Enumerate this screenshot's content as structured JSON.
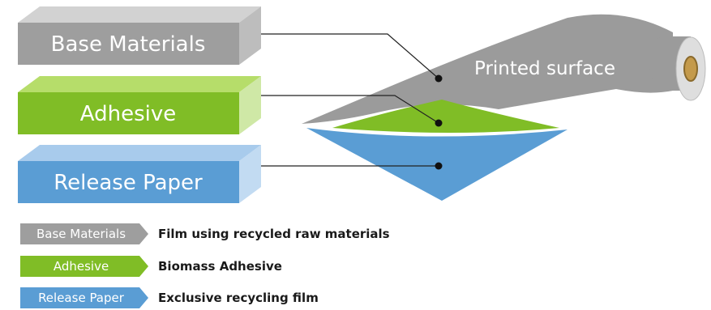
{
  "layers": {
    "base": {
      "label": "Base Materials",
      "color": "#9e9e9e"
    },
    "adhesive": {
      "label": "Adhesive",
      "color": "#80bd26"
    },
    "release": {
      "label": "Release Paper",
      "color": "#5a9dd4"
    }
  },
  "roll": {
    "surface_label": "Printed surface"
  },
  "legend": [
    {
      "tag": "Base Materials",
      "description": "Film using recycled raw materials",
      "color": "#9e9e9e"
    },
    {
      "tag": "Adhesive",
      "description": "Biomass Adhesive",
      "color": "#80bd26"
    },
    {
      "tag": "Release Paper",
      "description": "Exclusive recycling film",
      "color": "#5a9dd4"
    }
  ]
}
